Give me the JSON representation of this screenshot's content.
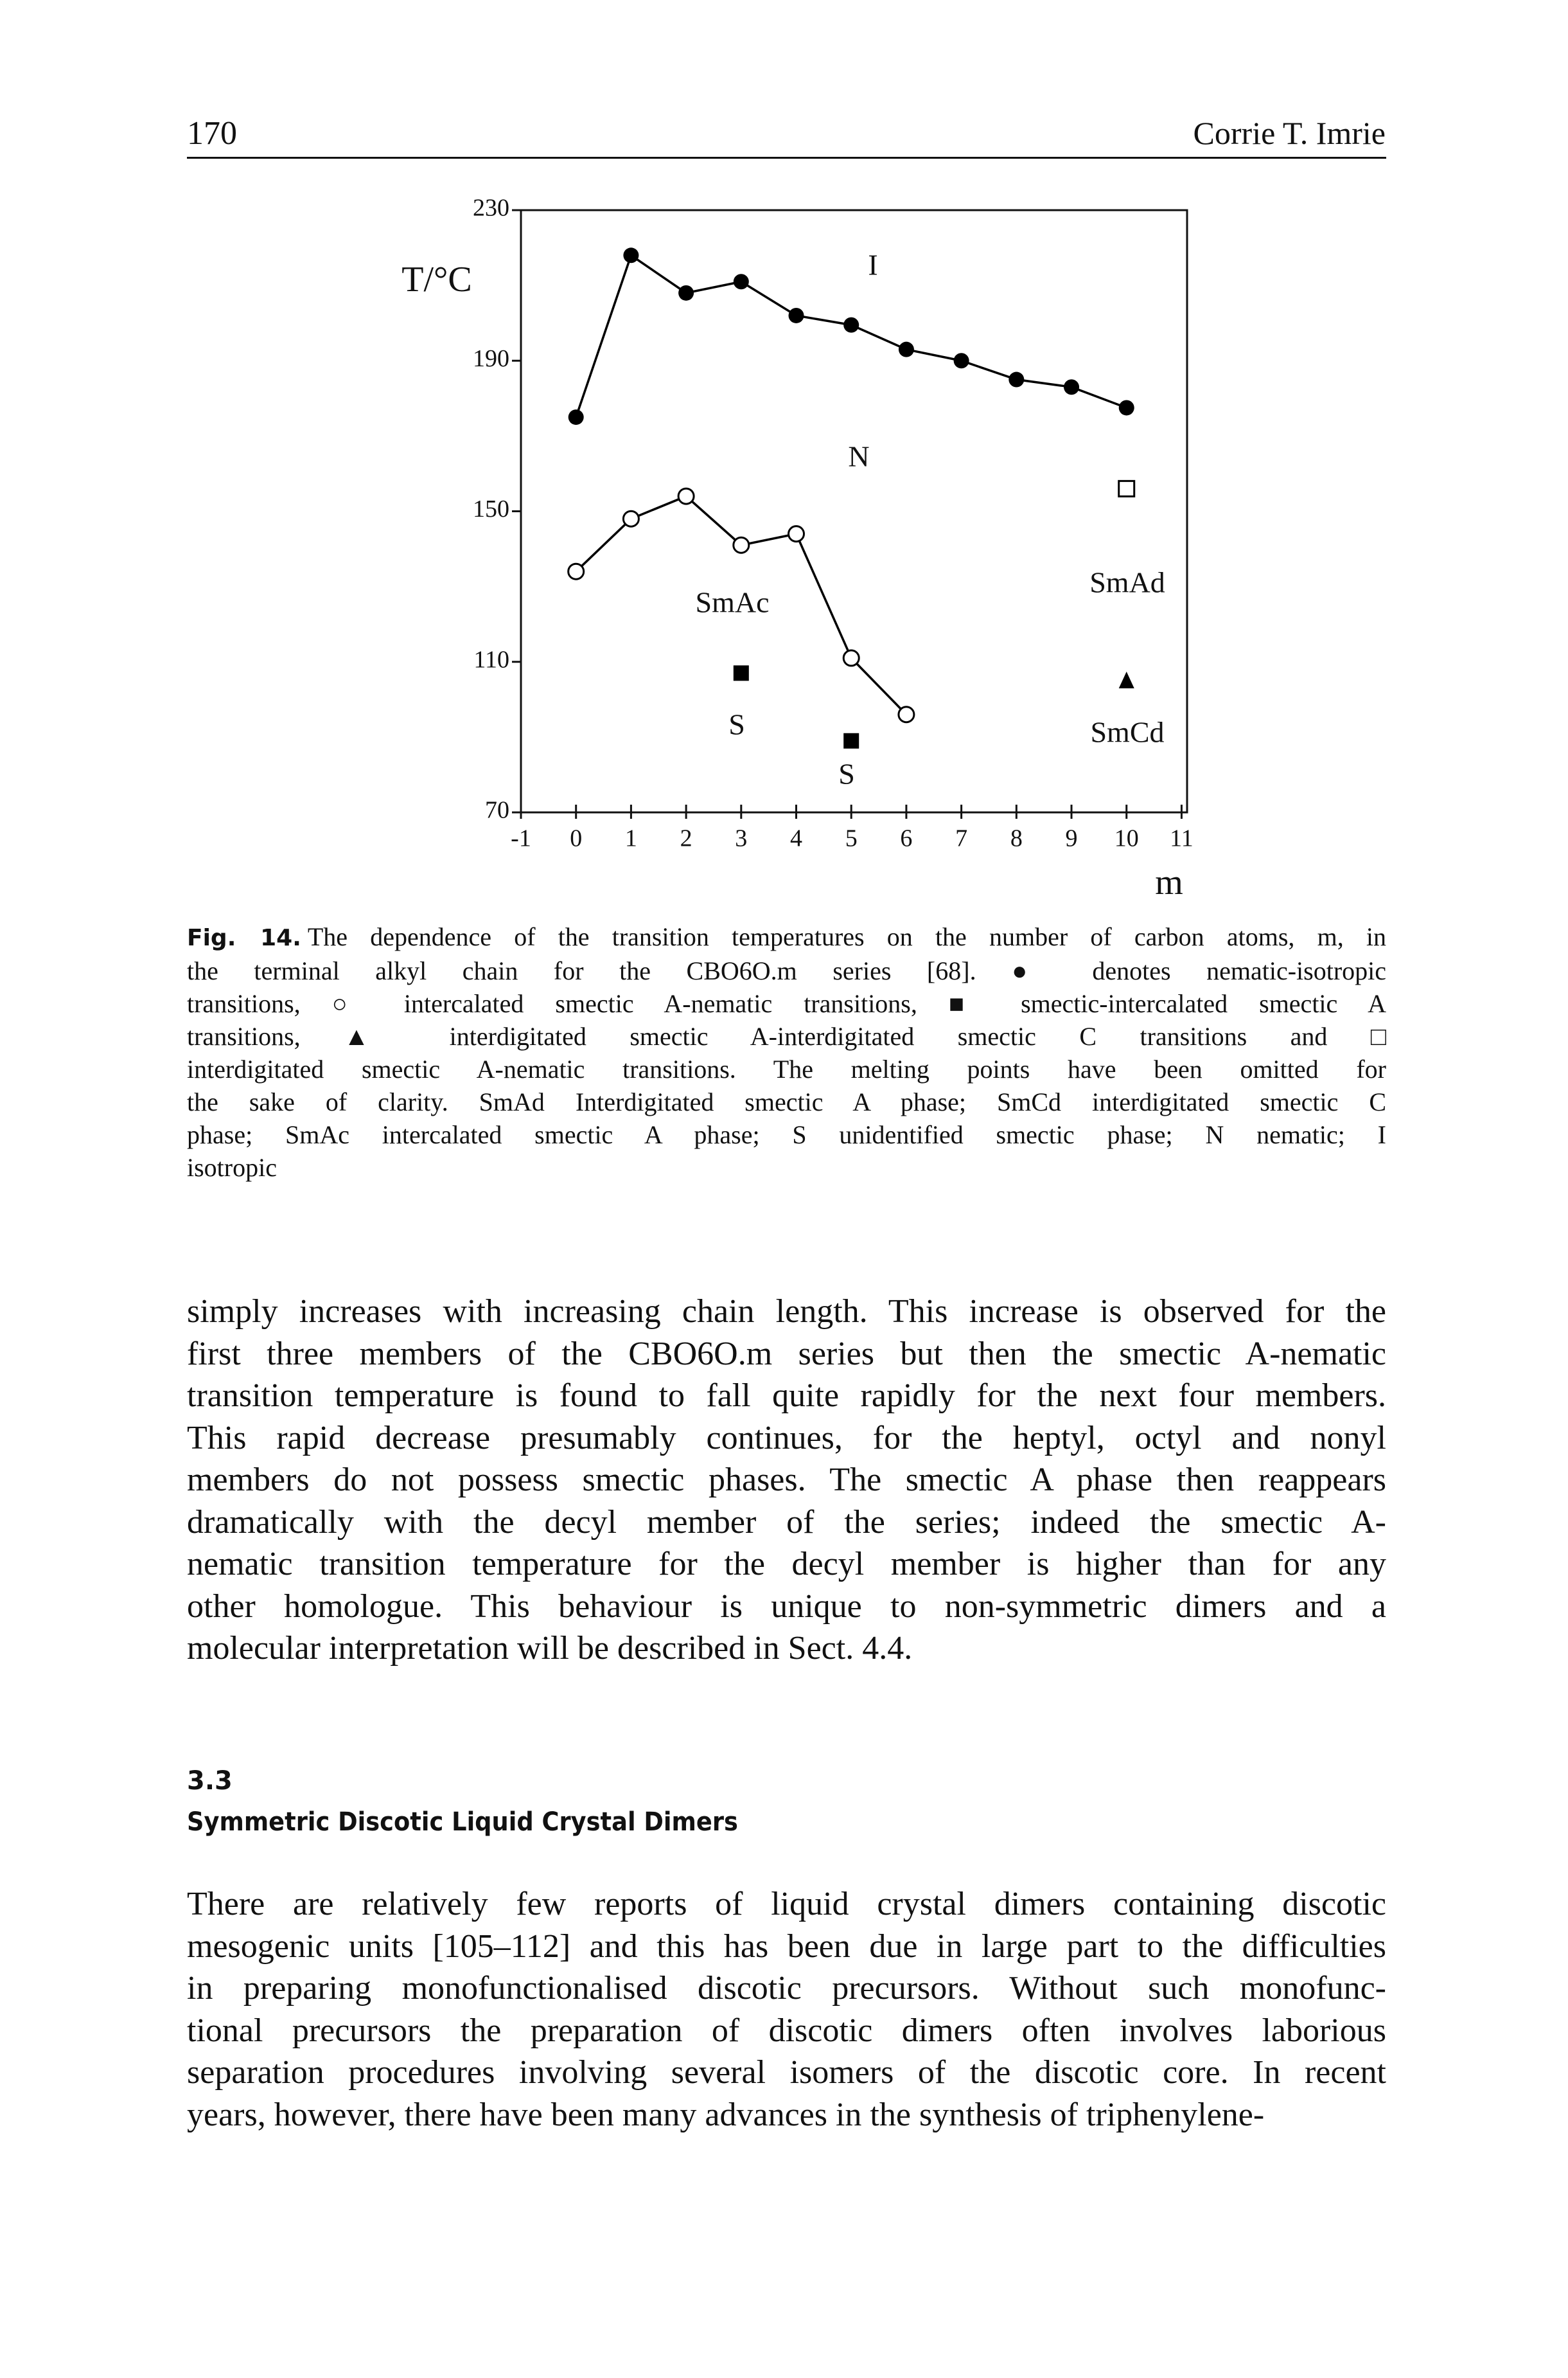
{
  "header": {
    "page_number": "170",
    "author": "Corrie T. Imrie"
  },
  "chart_data": {
    "type": "scatter",
    "y_label": "T/°C",
    "x_label": "m",
    "xlim": [
      -1,
      11.1
    ],
    "ylim": [
      70,
      230
    ],
    "xticks": [
      -1,
      0,
      1,
      2,
      3,
      4,
      5,
      6,
      7,
      8,
      9,
      10,
      11
    ],
    "yticks": [
      70,
      110,
      150,
      190,
      230
    ],
    "annotations": [
      "I",
      "N",
      "SmAc",
      "S",
      "S",
      "SmAd",
      "SmCd"
    ],
    "series": [
      {
        "marker": "filled-circle",
        "connected": true,
        "color": "#000000",
        "x": [
          0,
          1,
          2,
          3,
          4,
          5,
          6,
          7,
          8,
          9,
          10
        ],
        "values": [
          175,
          218,
          208,
          211,
          202,
          199.5,
          193,
          190,
          185,
          183,
          177.5
        ]
      },
      {
        "marker": "open-circle",
        "connected": true,
        "color": "#000000",
        "x": [
          0,
          1,
          2,
          3,
          4,
          5,
          6
        ],
        "values": [
          134,
          148,
          154,
          141,
          144,
          111,
          96
        ]
      },
      {
        "marker": "filled-square",
        "connected": false,
        "color": "#000000",
        "x": [
          3,
          5
        ],
        "values": [
          107,
          89
        ]
      },
      {
        "marker": "filled-triangle",
        "connected": false,
        "color": "#000000",
        "x": [
          10
        ],
        "values": [
          105
        ]
      },
      {
        "marker": "open-square",
        "connected": false,
        "color": "#000000",
        "x": [
          10
        ],
        "values": [
          156
        ]
      }
    ]
  },
  "caption": {
    "label": "Fig. 14.",
    "lines": [
      "The dependence of the transition temperatures on the number of carbon atoms, m, in",
      "the terminal alkyl chain for the CBO6O.m series [68]. ● denotes nematic-isotropic",
      "transitions, ○ intercalated smectic A-nematic transitions, ■ smectic-intercalated smectic A",
      "transitions, ▲ interdigitated smectic A-interdigitated smectic C transitions and □",
      "interdigitated smectic A-nematic transitions. The melting points have been omitted for",
      "the sake of clarity. SmAd Interdigitated smectic A phase; SmCd interdigitated smectic C",
      "phase; SmAc intercalated smectic A phase; S unidentified smectic phase; N nematic; I",
      "isotropic"
    ]
  },
  "paragraphs": [
    [
      "simply increases with increasing chain length. This increase is observed for the",
      "first three members of the CBO6O.m series but then the smectic A-nematic",
      "transition temperature is found to fall quite rapidly for the next four members.",
      "This rapid decrease presumably continues, for the heptyl, octyl and nonyl",
      "members do not possess smectic phases. The smectic A phase then reappears",
      "dramatically with the decyl member of the series; indeed the smectic A-",
      "nematic transition temperature for the decyl member is higher than for any",
      "other homologue. This behaviour is unique to non-symmetric dimers and a",
      "molecular interpretation will be described in Sect. 4.4."
    ],
    [
      "There are relatively few reports of liquid crystal dimers containing discotic",
      "mesogenic units [105–112] and this has been due in large part to the difficulties",
      "in preparing monofunctionalised discotic precursors. Without such monofunc-",
      "tional precursors the preparation of discotic dimers often involves laborious",
      "separation procedures involving several isomers of the discotic core. In recent",
      "years, however, there have been many advances in the synthesis of triphenylene-"
    ]
  ],
  "section": {
    "number": "3.3",
    "title": "Symmetric Discotic Liquid Crystal Dimers"
  }
}
